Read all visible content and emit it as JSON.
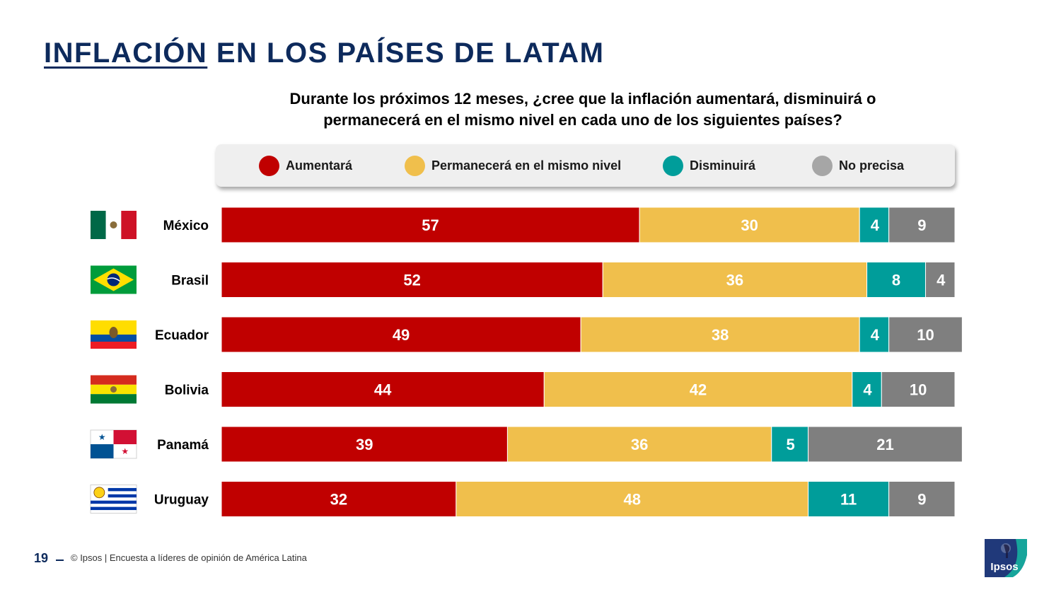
{
  "title_underlined": "INFLACIÓN",
  "title_rest": " EN LOS PAÍSES DE LATAM",
  "question_line1": "Durante los próximos 12 meses, ¿cree que la inflación aumentará, disminuirá o",
  "question_line2": "permanecerá en el mismo nivel en cada uno de los siguientes países?",
  "legend": [
    {
      "label": "Aumentará",
      "color": "#c00000"
    },
    {
      "label": "Permanecerá en el mismo nivel",
      "color": "#f0bf4c"
    },
    {
      "label": "Disminuirá",
      "color": "#009d9a"
    },
    {
      "label": "No precisa",
      "color": "#a6a6a6"
    }
  ],
  "chart_data": {
    "type": "bar",
    "orientation": "horizontal",
    "stacked": true,
    "categories": [
      "México",
      "Brasil",
      "Ecuador",
      "Bolivia",
      "Panamá",
      "Uruguay"
    ],
    "series": [
      {
        "name": "Aumentará",
        "color": "#c00000",
        "values": [
          57,
          52,
          49,
          44,
          39,
          32
        ]
      },
      {
        "name": "Permanecerá en el mismo nivel",
        "color": "#f0bf4c",
        "values": [
          30,
          36,
          38,
          42,
          36,
          48
        ]
      },
      {
        "name": "Disminuirá",
        "color": "#009d9a",
        "values": [
          4,
          8,
          4,
          4,
          5,
          11
        ]
      },
      {
        "name": "No precisa",
        "color": "#7f7f7f",
        "values": [
          9,
          4,
          10,
          10,
          21,
          9
        ]
      }
    ],
    "xlim": [
      0,
      100
    ],
    "flags": [
      "mexico-flag",
      "brazil-flag",
      "ecuador-flag",
      "bolivia-flag",
      "panama-flag",
      "uruguay-flag"
    ]
  },
  "footer": {
    "page_number": "19",
    "text": "© Ipsos | Encuesta a líderes de opinión de América Latina"
  },
  "logo_text": "Ipsos"
}
